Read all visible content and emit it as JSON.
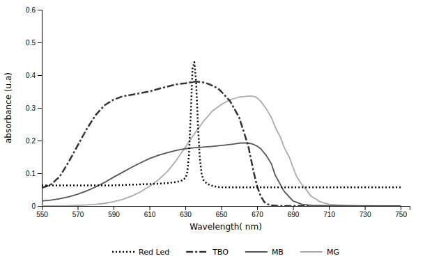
{
  "chart_data": {
    "type": "line",
    "xlabel": "Wavelength( nm)",
    "ylabel": "absorbance (u.a)",
    "xlim": [
      550,
      755
    ],
    "ylim": [
      0,
      0.6
    ],
    "xticks": [
      550,
      570,
      590,
      610,
      630,
      650,
      670,
      690,
      710,
      730,
      750
    ],
    "yticks": [
      0,
      0.1,
      0.2,
      0.3,
      0.4,
      0.5,
      0.6
    ],
    "grid": false,
    "legend": "bottom",
    "series": [
      {
        "name": "Red Led",
        "color": "#000000",
        "line_style": "dotted",
        "x": [
          550,
          555,
          560,
          565,
          570,
          575,
          580,
          585,
          590,
          595,
          600,
          605,
          610,
          615,
          620,
          625,
          628,
          630,
          631,
          632,
          633,
          634,
          635,
          636,
          637,
          638,
          639,
          640,
          642,
          644,
          646,
          648,
          650,
          655,
          660,
          665,
          670,
          675,
          680,
          685,
          690,
          700,
          710,
          720,
          730,
          740,
          750
        ],
        "values": [
          0.063,
          0.063,
          0.063,
          0.063,
          0.063,
          0.063,
          0.063,
          0.063,
          0.063,
          0.064,
          0.065,
          0.066,
          0.067,
          0.068,
          0.07,
          0.073,
          0.078,
          0.085,
          0.1,
          0.155,
          0.28,
          0.42,
          0.44,
          0.38,
          0.25,
          0.15,
          0.1,
          0.08,
          0.068,
          0.063,
          0.06,
          0.058,
          0.057,
          0.057,
          0.057,
          0.057,
          0.057,
          0.057,
          0.057,
          0.057,
          0.057,
          0.057,
          0.057,
          0.057,
          0.057,
          0.057,
          0.057
        ]
      },
      {
        "name": "TBO",
        "color": "#333333",
        "line_style": "dashdot",
        "x": [
          550,
          555,
          560,
          565,
          570,
          575,
          580,
          585,
          590,
          595,
          600,
          605,
          610,
          615,
          620,
          625,
          630,
          633,
          635,
          637,
          640,
          643,
          645,
          648,
          650,
          655,
          660,
          665,
          668,
          670,
          672,
          674,
          676,
          678,
          680,
          682,
          684,
          686,
          688,
          690,
          695,
          700
        ],
        "values": [
          0.055,
          0.065,
          0.09,
          0.135,
          0.185,
          0.235,
          0.278,
          0.308,
          0.325,
          0.335,
          0.34,
          0.345,
          0.35,
          0.358,
          0.365,
          0.372,
          0.375,
          0.378,
          0.38,
          0.38,
          0.378,
          0.373,
          0.368,
          0.36,
          0.35,
          0.32,
          0.27,
          0.185,
          0.105,
          0.06,
          0.03,
          0.012,
          0.005,
          0.002,
          0.001,
          0.0,
          0.0,
          0.0,
          0.0,
          0.0,
          0.0,
          0.0
        ]
      },
      {
        "name": "MB",
        "color": "#555555",
        "line_style": "solid",
        "x": [
          550,
          555,
          560,
          565,
          570,
          575,
          580,
          585,
          590,
          595,
          600,
          605,
          610,
          615,
          620,
          625,
          630,
          635,
          640,
          645,
          650,
          655,
          658,
          660,
          662,
          665,
          667,
          668,
          670,
          672,
          675,
          678,
          680,
          685,
          690,
          695,
          700,
          710,
          720,
          730,
          740,
          750
        ],
        "values": [
          0.015,
          0.018,
          0.022,
          0.028,
          0.036,
          0.046,
          0.058,
          0.072,
          0.088,
          0.103,
          0.118,
          0.132,
          0.145,
          0.155,
          0.163,
          0.17,
          0.175,
          0.178,
          0.18,
          0.182,
          0.185,
          0.188,
          0.19,
          0.192,
          0.193,
          0.192,
          0.19,
          0.188,
          0.183,
          0.175,
          0.155,
          0.128,
          0.095,
          0.045,
          0.015,
          0.005,
          0.002,
          0.001,
          0.0,
          0.0,
          0.0,
          0.0
        ]
      },
      {
        "name": "MG",
        "color": "#aaaaaa",
        "line_style": "solid",
        "x": [
          550,
          555,
          560,
          565,
          570,
          575,
          580,
          585,
          590,
          595,
          600,
          605,
          610,
          615,
          620,
          625,
          630,
          635,
          640,
          645,
          650,
          655,
          660,
          663,
          665,
          667,
          668,
          669,
          670,
          672,
          675,
          678,
          680,
          683,
          685,
          688,
          690,
          692,
          695,
          698,
          700,
          703,
          705,
          708,
          710,
          715,
          720,
          725,
          730,
          740,
          750
        ],
        "values": [
          0.0,
          0.0,
          0.0,
          0.001,
          0.002,
          0.003,
          0.005,
          0.008,
          0.013,
          0.02,
          0.03,
          0.043,
          0.06,
          0.08,
          0.105,
          0.14,
          0.18,
          0.22,
          0.258,
          0.29,
          0.31,
          0.325,
          0.333,
          0.335,
          0.336,
          0.336,
          0.335,
          0.334,
          0.33,
          0.32,
          0.298,
          0.27,
          0.242,
          0.21,
          0.18,
          0.148,
          0.118,
          0.09,
          0.065,
          0.045,
          0.03,
          0.02,
          0.013,
          0.008,
          0.005,
          0.003,
          0.002,
          0.001,
          0.001,
          0.0,
          0.0
        ]
      }
    ]
  }
}
